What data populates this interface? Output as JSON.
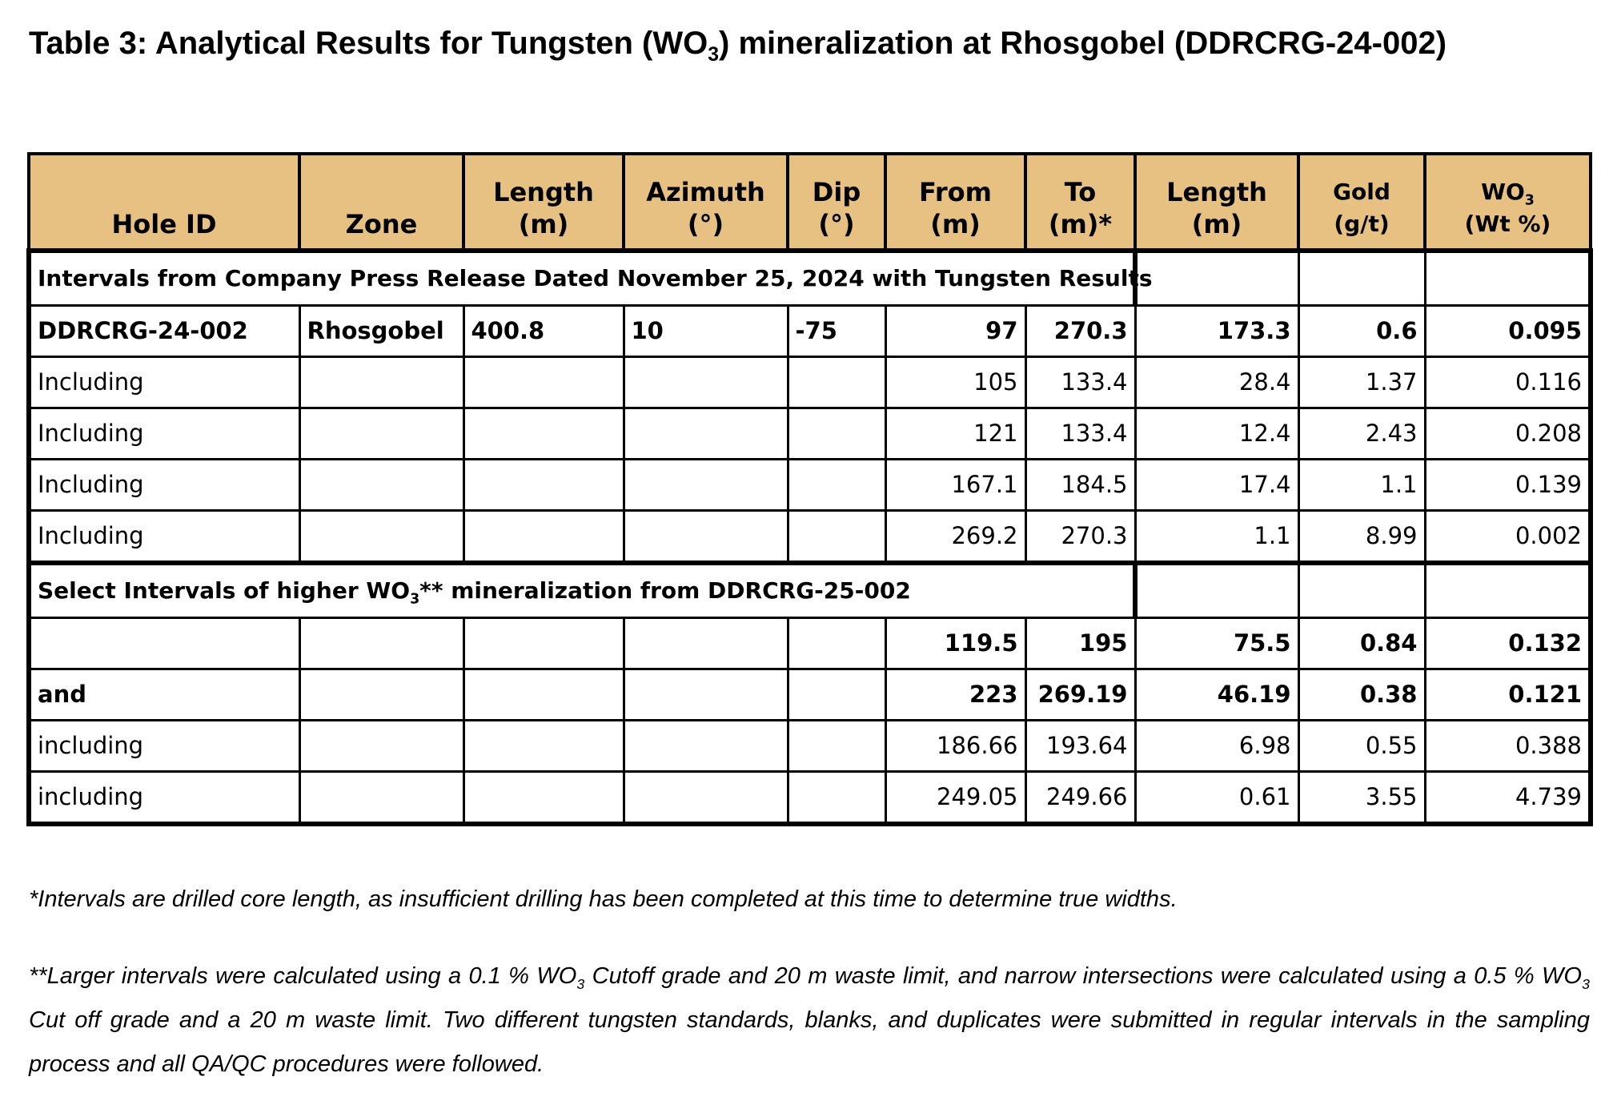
{
  "title": {
    "prefix": "Table 3: Analytical Results for Tungsten (WO",
    "sub": "3",
    "suffix": ") mineralization at Rhosgobel (DDRCRG-24-002)"
  },
  "headers": [
    {
      "line1": "",
      "line2": "Hole ID"
    },
    {
      "line1": "",
      "line2": "Zone"
    },
    {
      "line1": "Length",
      "line2": "(m)"
    },
    {
      "line1": "Azimuth",
      "line2": "(°)"
    },
    {
      "line1": "Dip",
      "line2": "(°)"
    },
    {
      "line1": "From",
      "line2": "(m)"
    },
    {
      "line1": "To",
      "line2": "(m)*"
    },
    {
      "line1": "Length",
      "line2": "(m)"
    },
    {
      "line1": "Gold",
      "line2": "(g/t)"
    },
    {
      "line1": "WO",
      "line1_sub": "3",
      "line2": "(Wt %)"
    }
  ],
  "section1": {
    "label": "Intervals from Company Press Release Dated November 25, 2024 with Tungsten Results",
    "rows": [
      {
        "hole_id": "DDRCRG-24-002",
        "zone": "Rhosgobel",
        "length": "400.8",
        "azimuth": "10",
        "dip": "-75",
        "from": "97",
        "to": "270.3",
        "int_length": "173.3",
        "gold": "0.6",
        "wo3": "0.095"
      },
      {
        "hole_id": "Including",
        "zone": "",
        "length": "",
        "azimuth": "",
        "dip": "",
        "from": "105",
        "to": "133.4",
        "int_length": "28.4",
        "gold": "1.37",
        "wo3": "0.116"
      },
      {
        "hole_id": "Including",
        "zone": "",
        "length": "",
        "azimuth": "",
        "dip": "",
        "from": "121",
        "to": "133.4",
        "int_length": "12.4",
        "gold": "2.43",
        "wo3": "0.208"
      },
      {
        "hole_id": "Including",
        "zone": "",
        "length": "",
        "azimuth": "",
        "dip": "",
        "from": "167.1",
        "to": "184.5",
        "int_length": "17.4",
        "gold": "1.1",
        "wo3": "0.139"
      },
      {
        "hole_id": "Including",
        "zone": "",
        "length": "",
        "azimuth": "",
        "dip": "",
        "from": "269.2",
        "to": "270.3",
        "int_length": "1.1",
        "gold": "8.99",
        "wo3": "0.002"
      }
    ]
  },
  "section2": {
    "label_prefix": "Select Intervals of higher WO",
    "label_sub": "3",
    "label_suffix": "** mineralization from DDRCRG-25-002",
    "rows": [
      {
        "hole_id": "",
        "zone": "",
        "length": "",
        "azimuth": "",
        "dip": "",
        "from": "119.5",
        "to": "195",
        "int_length": "75.5",
        "gold": "0.84",
        "wo3": "0.132"
      },
      {
        "hole_id": "and",
        "zone": "",
        "length": "",
        "azimuth": "",
        "dip": "",
        "from": "223",
        "to": "269.19",
        "int_length": "46.19",
        "gold": "0.38",
        "wo3": "0.121"
      },
      {
        "hole_id": "including",
        "zone": "",
        "length": "",
        "azimuth": "",
        "dip": "",
        "from": "186.66",
        "to": "193.64",
        "int_length": "6.98",
        "gold": "0.55",
        "wo3": "0.388"
      },
      {
        "hole_id": "including",
        "zone": "",
        "length": "",
        "azimuth": "",
        "dip": "",
        "from": "249.05",
        "to": "249.66",
        "int_length": "0.61",
        "gold": "3.55",
        "wo3": "4.739"
      }
    ]
  },
  "notes": {
    "note1": "*Intervals are drilled core length, as insufficient drilling has been completed at this time to determine true widths.",
    "note2_a": "**Larger intervals were calculated using a 0.1 % WO",
    "note2_a_sub": "3",
    "note2_b": " Cutoff grade and 20 m waste limit, and narrow intersections were calculated using a 0.5 % WO",
    "note2_b_sub": "3",
    "note2_c": " Cut off grade and a 20 m waste limit. Two different tungsten standards, blanks, and duplicates were submitted in regular intervals in the sampling process and all QA/QC procedures were followed."
  }
}
